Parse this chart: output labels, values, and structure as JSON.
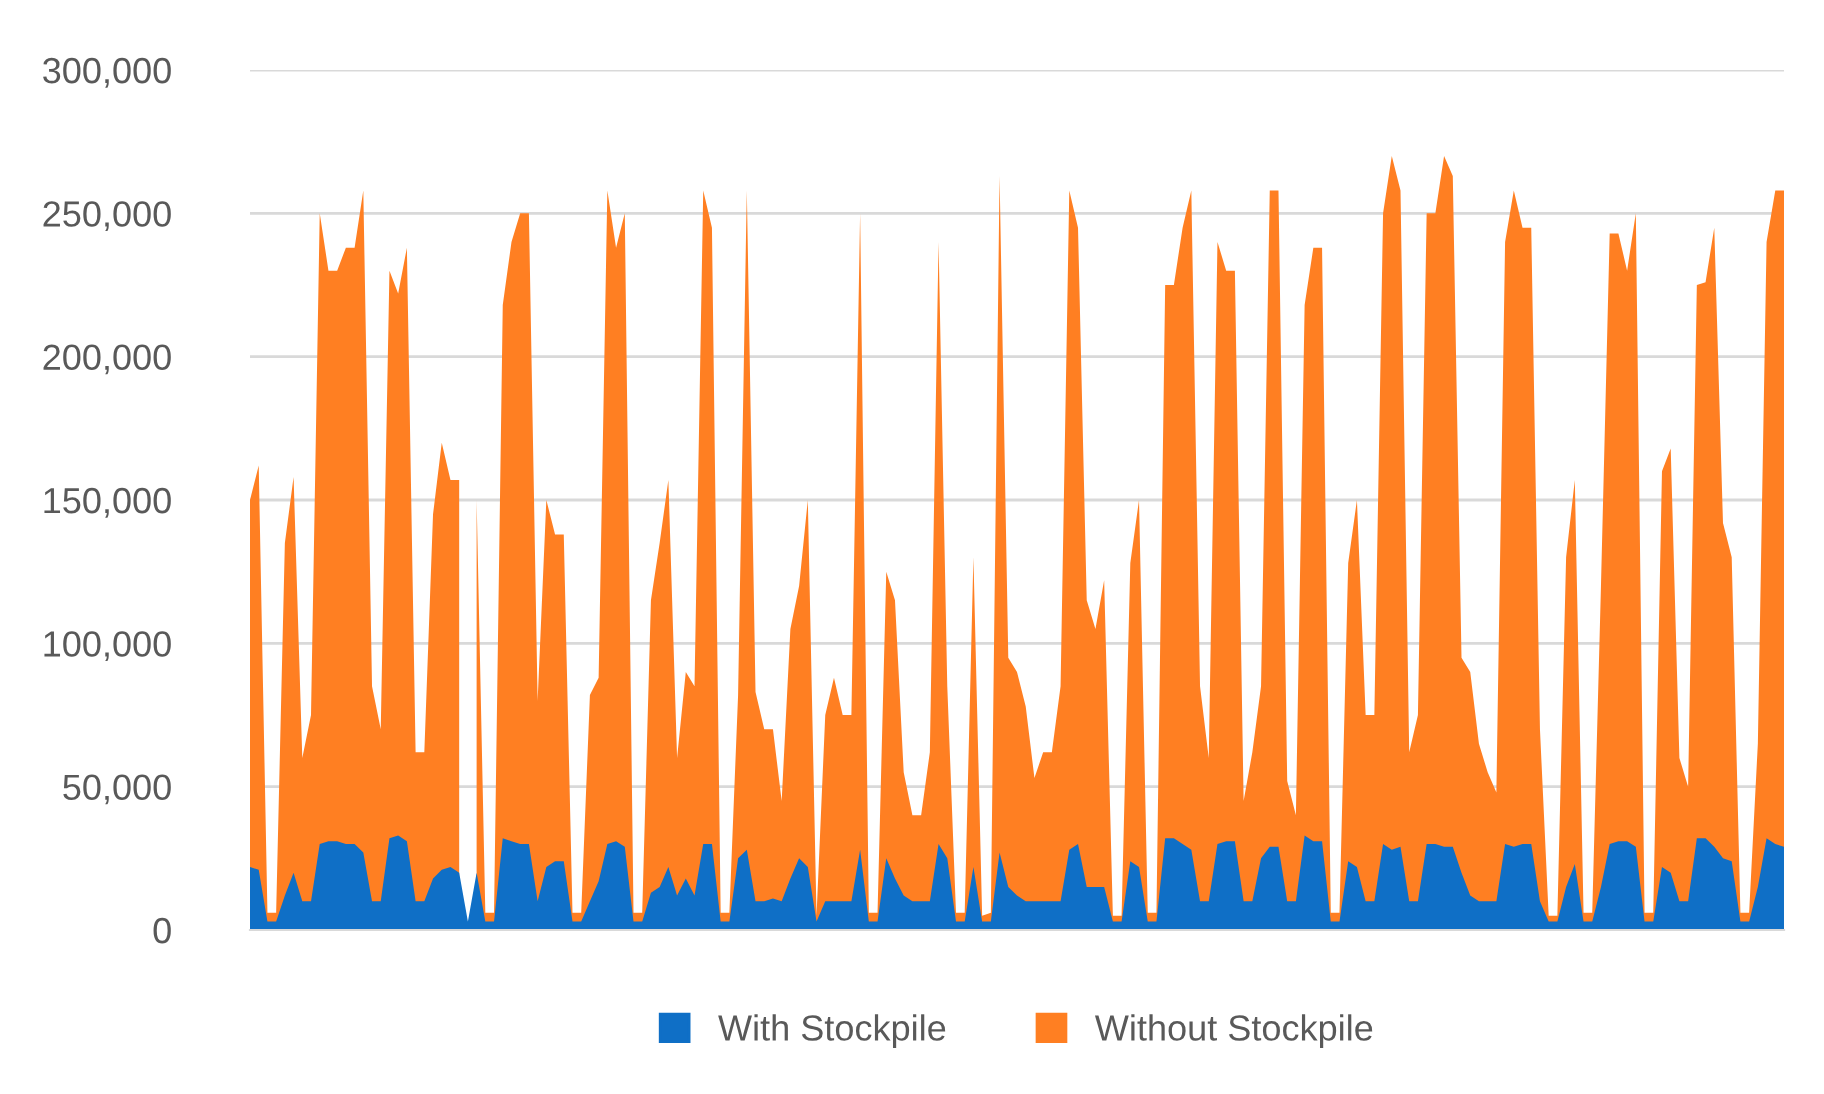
{
  "chart_data": {
    "type": "area",
    "categories": [
      null,
      null,
      null,
      null,
      null,
      null,
      null,
      null,
      null,
      null,
      null,
      null,
      null,
      null,
      null,
      null,
      null,
      null,
      null,
      null,
      null,
      null,
      null,
      null,
      null,
      null,
      null,
      null,
      null,
      null,
      null,
      null,
      null,
      null,
      null,
      null,
      null,
      null,
      null,
      null,
      null,
      null,
      null,
      null,
      null,
      null,
      null,
      null,
      null,
      null,
      null,
      null,
      null,
      null,
      null,
      null,
      null,
      null,
      null,
      null,
      null,
      null,
      null,
      null,
      null,
      null,
      null,
      null,
      null,
      null,
      null,
      null,
      null,
      null,
      null,
      null,
      null,
      null,
      null,
      null,
      null,
      null,
      null,
      null,
      null,
      null,
      null,
      null,
      null,
      null,
      null,
      null,
      null,
      null,
      null,
      null,
      null,
      null,
      null,
      null,
      null,
      null,
      null,
      null,
      null,
      null,
      null,
      null,
      null,
      null,
      null,
      null,
      null,
      null,
      null,
      null,
      null,
      null,
      null,
      null,
      null,
      null,
      null,
      null,
      null,
      null,
      null,
      null,
      null,
      null,
      null,
      null,
      null,
      null,
      null,
      null,
      null,
      null,
      null,
      null,
      null,
      null,
      null,
      null,
      null,
      null,
      null,
      null,
      null,
      null,
      null,
      null,
      null,
      null,
      null,
      null,
      null,
      null,
      null,
      null,
      null,
      null,
      null,
      null,
      null,
      null,
      null,
      null,
      null,
      null,
      null,
      null,
      null,
      null,
      null,
      null,
      null
    ],
    "series": [
      {
        "name": "Without Stockpile",
        "color": "#ff7f22",
        "values": [
          150000,
          162000,
          6000,
          6000,
          135000,
          158000,
          60000,
          75000,
          250000,
          230000,
          230000,
          238000,
          238000,
          258000,
          85000,
          70000,
          230000,
          222000,
          238000,
          62000,
          62000,
          145000,
          170000,
          157000,
          157000,
          null,
          150000,
          6000,
          6000,
          218000,
          240000,
          250000,
          250000,
          80000,
          150000,
          138000,
          138000,
          6000,
          6000,
          82000,
          88000,
          258000,
          238000,
          250000,
          6000,
          6000,
          115000,
          135000,
          157000,
          60000,
          90000,
          85000,
          258000,
          245000,
          6000,
          6000,
          82000,
          258000,
          83000,
          70000,
          70000,
          45000,
          105000,
          120000,
          150000,
          5000,
          75000,
          88000,
          75000,
          75000,
          250000,
          6000,
          6000,
          125000,
          115000,
          55000,
          40000,
          40000,
          62000,
          240000,
          85000,
          6000,
          6000,
          130000,
          5000,
          6000,
          263000,
          95000,
          90000,
          78000,
          53000,
          62000,
          62000,
          85000,
          258000,
          245000,
          115000,
          105000,
          122000,
          5000,
          5000,
          128000,
          150000,
          6000,
          6000,
          225000,
          225000,
          245000,
          258000,
          85000,
          60000,
          240000,
          230000,
          230000,
          45000,
          62000,
          85000,
          258000,
          258000,
          52000,
          40000,
          218000,
          238000,
          238000,
          6000,
          6000,
          128000,
          150000,
          75000,
          75000,
          250000,
          270000,
          258000,
          62000,
          75000,
          250000,
          250000,
          270000,
          263000,
          95000,
          90000,
          65000,
          55000,
          48000,
          240000,
          258000,
          245000,
          245000,
          70000,
          5000,
          5000,
          130000,
          157000,
          6000,
          6000,
          120000,
          243000,
          243000,
          230000,
          250000,
          6000,
          6000,
          160000,
          168000,
          60000,
          50000,
          225000,
          226000,
          245000,
          142000,
          130000,
          6000,
          6000,
          65000,
          240000,
          258000,
          258000
        ]
      },
      {
        "name": "With Stockpile",
        "color": "#0f6fc6",
        "values": [
          22000,
          21000,
          3000,
          3000,
          12000,
          20000,
          10000,
          10000,
          30000,
          31000,
          31000,
          30000,
          30000,
          27000,
          10000,
          10000,
          32000,
          33000,
          31000,
          10000,
          10000,
          18000,
          21000,
          22000,
          20000,
          3000,
          20000,
          3000,
          3000,
          32000,
          31000,
          30000,
          30000,
          10000,
          22000,
          24000,
          24000,
          3000,
          3000,
          10000,
          17000,
          30000,
          31000,
          29000,
          3000,
          3000,
          13000,
          15000,
          22000,
          12000,
          18000,
          12000,
          30000,
          30000,
          3000,
          3000,
          25000,
          28000,
          10000,
          10000,
          11000,
          10000,
          18000,
          25000,
          22000,
          3000,
          10000,
          10000,
          10000,
          10000,
          28000,
          3000,
          3000,
          25000,
          18000,
          12000,
          10000,
          10000,
          10000,
          30000,
          25000,
          3000,
          3000,
          22000,
          3000,
          3000,
          27000,
          15000,
          12000,
          10000,
          10000,
          10000,
          10000,
          10000,
          28000,
          30000,
          15000,
          15000,
          15000,
          3000,
          3000,
          24000,
          22000,
          3000,
          3000,
          32000,
          32000,
          30000,
          28000,
          10000,
          10000,
          30000,
          31000,
          31000,
          10000,
          10000,
          25000,
          29000,
          29000,
          10000,
          10000,
          33000,
          31000,
          31000,
          3000,
          3000,
          24000,
          22000,
          10000,
          10000,
          30000,
          28000,
          29000,
          10000,
          10000,
          30000,
          30000,
          29000,
          29000,
          20000,
          12000,
          10000,
          10000,
          10000,
          30000,
          29000,
          30000,
          30000,
          10000,
          3000,
          3000,
          15000,
          23000,
          3000,
          3000,
          15000,
          30000,
          31000,
          31000,
          29000,
          3000,
          3000,
          22000,
          20000,
          10000,
          10000,
          32000,
          32000,
          29000,
          25000,
          24000,
          3000,
          3000,
          15000,
          32000,
          30000,
          29000
        ]
      }
    ],
    "ylim": [
      0,
      300000
    ],
    "yticks": [
      {
        "value": 0,
        "label": "0"
      },
      {
        "value": 50000,
        "label": "50,000"
      },
      {
        "value": 100000,
        "label": "100,000"
      },
      {
        "value": 150000,
        "label": "150,000"
      },
      {
        "value": 200000,
        "label": "200,000"
      },
      {
        "value": 250000,
        "label": "250,000"
      },
      {
        "value": 300000,
        "label": "300,000"
      }
    ],
    "grid": "y",
    "legend": "bottom",
    "tick_labels": "y"
  }
}
